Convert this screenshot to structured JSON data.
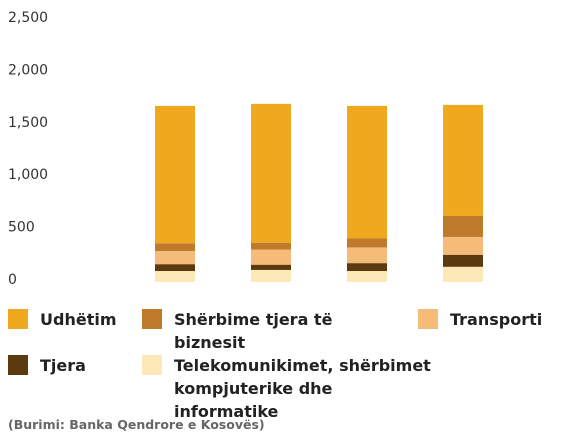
{
  "chart_data": {
    "type": "stacked_bar",
    "categories": [
      null,
      null,
      null,
      null
    ],
    "series": [
      {
        "name": "Udhëtim",
        "color": "#f0a81e",
        "values": [
          1310,
          1325,
          1265,
          1060
        ]
      },
      {
        "name": "Shërbime tjera të biznesit",
        "color": "#c07a2c",
        "values": [
          75,
          65,
          85,
          200
        ]
      },
      {
        "name": "Transporti",
        "color": "#f5bb78",
        "values": [
          125,
          145,
          150,
          170
        ]
      },
      {
        "name": "Tjera",
        "color": "#5c3a10",
        "values": [
          65,
          50,
          75,
          115
        ]
      },
      {
        "name": "Telekomunikimet, shërbimet kompjuterike dhe informatike",
        "color": "#fde8b8",
        "values": [
          105,
          115,
          105,
          145
        ]
      }
    ],
    "ylim": [
      0,
      2500
    ],
    "yticks": [
      0,
      500,
      {
        "value": 1000,
        "label": "1,000"
      },
      {
        "value": 1500,
        "label": "1,500"
      },
      {
        "value": 2000,
        "label": "2,000"
      },
      {
        "value": 2500,
        "label": "2,500"
      }
    ],
    "grid": false,
    "source": "(Burimi: Banka Qendrore e Kosovës)"
  }
}
